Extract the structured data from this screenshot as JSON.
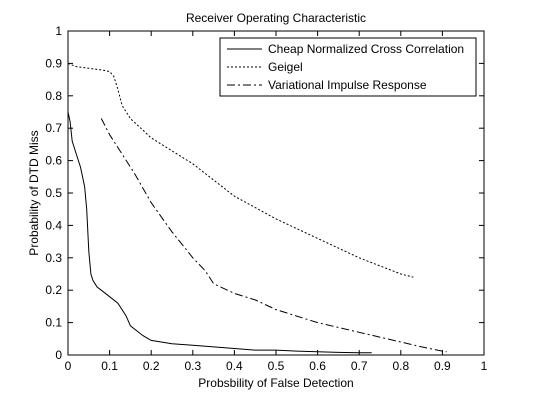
{
  "chart_data": {
    "type": "line",
    "title": "Receiver Operating Characteristic",
    "xlabel": "Probsbility of False Detection",
    "ylabel": "Probability of DTD Miss",
    "xlim": [
      0,
      1
    ],
    "ylim": [
      0,
      1
    ],
    "x_ticks": [
      "0",
      "0.1",
      "0.2",
      "0.3",
      "0.4",
      "0.5",
      "0.6",
      "0.7",
      "0.8",
      "0.9",
      "1"
    ],
    "y_ticks": [
      "0",
      "0.1",
      "0.2",
      "0.3",
      "0.4",
      "0.5",
      "0.6",
      "0.7",
      "0.8",
      "0.9",
      "1"
    ],
    "grid": false,
    "legend_position": "top-right",
    "series": [
      {
        "name": "Cheap Normalized Cross Correlation",
        "style": "solid",
        "color": "#000000",
        "x": [
          0,
          0.005,
          0.01,
          0.02,
          0.03,
          0.04,
          0.045,
          0.05,
          0.055,
          0.06,
          0.065,
          0.07,
          0.08,
          0.1,
          0.12,
          0.14,
          0.15,
          0.18,
          0.2,
          0.25,
          0.3,
          0.35,
          0.4,
          0.45,
          0.5,
          0.55,
          0.6,
          0.65,
          0.7,
          0.73
        ],
        "y": [
          0.75,
          0.72,
          0.66,
          0.62,
          0.58,
          0.52,
          0.45,
          0.32,
          0.25,
          0.23,
          0.22,
          0.21,
          0.2,
          0.18,
          0.16,
          0.12,
          0.09,
          0.06,
          0.045,
          0.035,
          0.03,
          0.025,
          0.02,
          0.015,
          0.015,
          0.012,
          0.01,
          0.008,
          0.007,
          0.007
        ]
      },
      {
        "name": "Geigel",
        "style": "dotted",
        "color": "#000000",
        "x": [
          0,
          0.02,
          0.05,
          0.08,
          0.1,
          0.11,
          0.12,
          0.13,
          0.15,
          0.2,
          0.25,
          0.3,
          0.4,
          0.5,
          0.6,
          0.7,
          0.8,
          0.83
        ],
        "y": [
          0.9,
          0.89,
          0.885,
          0.88,
          0.875,
          0.86,
          0.82,
          0.77,
          0.73,
          0.67,
          0.63,
          0.59,
          0.49,
          0.42,
          0.36,
          0.3,
          0.25,
          0.24
        ]
      },
      {
        "name": "Variational Impulse Response",
        "style": "dashdot",
        "color": "#000000",
        "x": [
          0.08,
          0.1,
          0.13,
          0.16,
          0.2,
          0.25,
          0.3,
          0.33,
          0.35,
          0.4,
          0.45,
          0.5,
          0.55,
          0.6,
          0.7,
          0.8,
          0.85,
          0.9,
          0.91
        ],
        "y": [
          0.73,
          0.68,
          0.62,
          0.56,
          0.47,
          0.38,
          0.3,
          0.26,
          0.22,
          0.19,
          0.17,
          0.14,
          0.12,
          0.1,
          0.07,
          0.04,
          0.025,
          0.012,
          0.01
        ]
      }
    ]
  }
}
